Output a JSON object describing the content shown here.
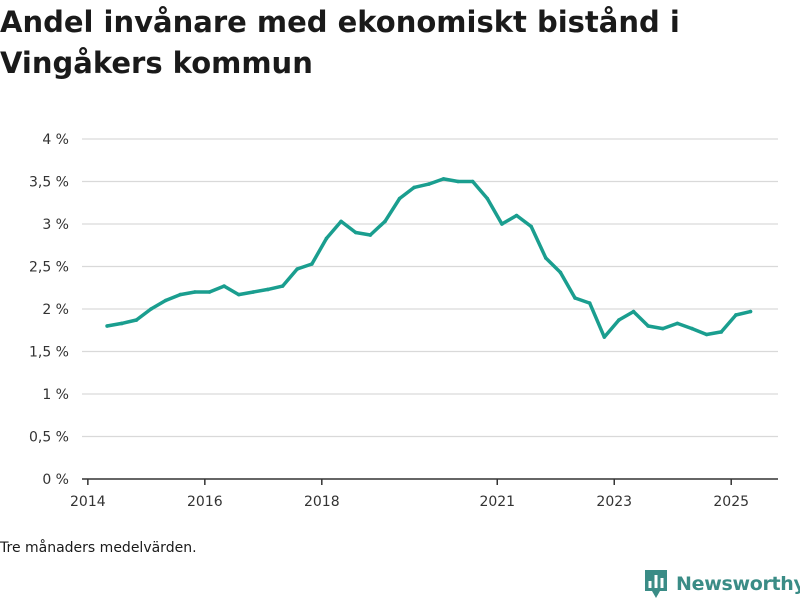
{
  "title": "Andel invånare med ekonomiskt bistånd i Vingåkers kommun",
  "note": "Tre månaders medelvärden.",
  "brand": {
    "name": "Newsworthy",
    "icon": "newsworthy-logo-icon",
    "color": "#3a8c86"
  },
  "colors": {
    "line": "#1a9e8f",
    "grid": "#d9d9d9",
    "axis": "#333333"
  },
  "chart_data": {
    "type": "line",
    "title": "Andel invånare med ekonomiskt bistånd i Vingåkers kommun",
    "xlabel": "",
    "ylabel": "",
    "ylim": [
      0,
      4
    ],
    "xlim": [
      2013.9,
      2025.8
    ],
    "grid": true,
    "y_ticks": [
      0,
      0.5,
      1,
      1.5,
      2,
      2.5,
      3,
      3.5,
      4
    ],
    "y_tick_labels": [
      "0 %",
      "0,5 %",
      "1 %",
      "1,5 %",
      "2 %",
      "2,5 %",
      "3 %",
      "3,5 %",
      "4 %"
    ],
    "x_ticks": [
      2014,
      2016,
      2018,
      2021,
      2023,
      2025
    ],
    "x_tick_labels": [
      "2014",
      "2016",
      "2018",
      "2021",
      "2023",
      "2025"
    ],
    "series": [
      {
        "x": [
          2014.33,
          2014.58,
          2014.83,
          2015.08,
          2015.33,
          2015.58,
          2015.83,
          2016.08,
          2016.33,
          2016.58,
          2016.83,
          2017.08,
          2017.33,
          2017.58,
          2017.83,
          2018.08,
          2018.33,
          2018.58,
          2018.83,
          2019.08,
          2019.33,
          2019.58,
          2019.83,
          2020.08,
          2020.33,
          2020.58,
          2020.83,
          2021.08,
          2021.33,
          2021.58,
          2021.83,
          2022.08,
          2022.33,
          2022.58,
          2022.83,
          2023.08,
          2023.33,
          2023.58,
          2023.83,
          2024.08,
          2024.33,
          2024.58,
          2024.83,
          2025.08,
          2025.33
        ],
        "values": [
          1.8,
          1.83,
          1.87,
          2.0,
          2.1,
          2.17,
          2.2,
          2.2,
          2.27,
          2.17,
          2.2,
          2.23,
          2.27,
          2.47,
          2.53,
          2.83,
          3.03,
          2.9,
          2.87,
          3.03,
          3.3,
          3.43,
          3.47,
          3.53,
          3.5,
          3.5,
          3.3,
          3.0,
          3.1,
          2.97,
          2.6,
          2.43,
          2.13,
          2.07,
          1.67,
          1.87,
          1.97,
          1.8,
          1.77,
          1.83,
          1.77,
          1.7,
          1.73,
          1.93,
          1.97
        ]
      }
    ]
  }
}
